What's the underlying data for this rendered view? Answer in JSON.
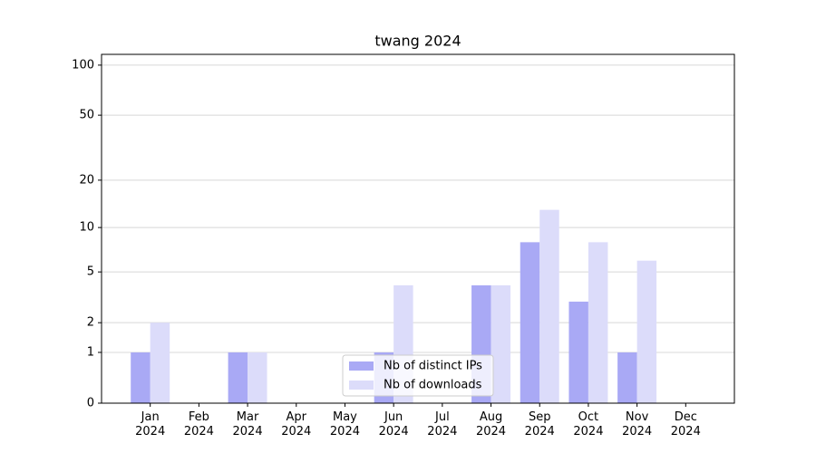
{
  "chart_data": {
    "type": "bar",
    "title": "twang 2024",
    "categories": [
      "Jan\n2024",
      "Feb\n2024",
      "Mar\n2024",
      "Apr\n2024",
      "May\n2024",
      "Jun\n2024",
      "Jul\n2024",
      "Aug\n2024",
      "Sep\n2024",
      "Oct\n2024",
      "Nov\n2024",
      "Dec\n2024"
    ],
    "series": [
      {
        "name": "Nb of distinct IPs",
        "color": "#a9a9f5",
        "values": [
          1,
          0,
          1,
          0,
          0,
          1,
          0,
          4,
          8,
          3,
          1,
          0
        ]
      },
      {
        "name": "Nb of downloads",
        "color": "#dcdcfa",
        "values": [
          2,
          0,
          1,
          0,
          0,
          4,
          0,
          4,
          13,
          8,
          6,
          0
        ]
      }
    ],
    "yscale": "log1p",
    "ylim": [
      0,
      116
    ],
    "yticks": [
      0,
      1,
      2,
      5,
      10,
      20,
      50,
      100
    ],
    "grid": true,
    "legend": "lower center"
  }
}
